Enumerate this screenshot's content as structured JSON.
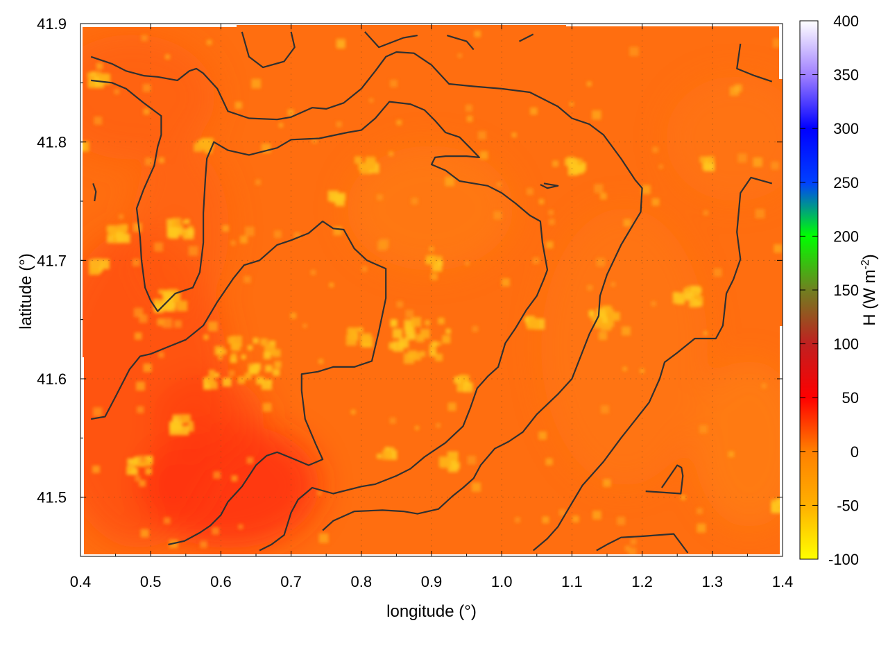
{
  "chart_data": {
    "type": "heatmap",
    "title": "",
    "xlabel": "longitude (°)",
    "ylabel": "latitude (°)",
    "xlim": [
      0.4,
      1.4
    ],
    "ylim": [
      41.45,
      41.9
    ],
    "x_ticks": [
      "0.4",
      "0.5",
      "0.6",
      "0.7",
      "0.8",
      "0.9",
      "1.0",
      "1.1",
      "1.2",
      "1.3",
      "1.4"
    ],
    "y_ticks": [
      "41.5",
      "41.6",
      "41.7",
      "41.8",
      "41.9"
    ],
    "grid": true,
    "colorbar": {
      "label": "H (W m",
      "label_superscript": "-2",
      "label_suffix": ")",
      "range": [
        -100,
        400
      ],
      "ticks": [
        "400",
        "350",
        "300",
        "250",
        "200",
        "150",
        "100",
        "50",
        "0",
        "-50",
        "-100"
      ],
      "stops": [
        {
          "value": -100,
          "color": "#ffff00"
        },
        {
          "value": -50,
          "color": "#ffb000"
        },
        {
          "value": 0,
          "color": "#ff8000"
        },
        {
          "value": 50,
          "color": "#ff0000"
        },
        {
          "value": 100,
          "color": "#c02020"
        },
        {
          "value": 150,
          "color": "#708020"
        },
        {
          "value": 200,
          "color": "#00ff00"
        },
        {
          "value": 250,
          "color": "#0040ff"
        },
        {
          "value": 300,
          "color": "#0000ff"
        },
        {
          "value": 350,
          "color": "#a080ff"
        },
        {
          "value": 400,
          "color": "#ffffff"
        }
      ]
    },
    "field_description_values": {
      "background_min": 5,
      "background_max": 35,
      "hotspot_value": -60
    },
    "contours": [
      [
        [
          0.415,
          41.872
        ],
        [
          0.445,
          41.866
        ],
        [
          0.465,
          41.86
        ],
        [
          0.49,
          41.856
        ],
        [
          0.51,
          41.855
        ],
        [
          0.538,
          41.852
        ],
        [
          0.555,
          41.86
        ],
        [
          0.565,
          41.862
        ],
        [
          0.575,
          41.858
        ],
        [
          0.595,
          41.845
        ],
        [
          0.61,
          41.826
        ],
        [
          0.64,
          41.82
        ],
        [
          0.68,
          41.819
        ],
        [
          0.7,
          41.821
        ],
        [
          0.73,
          41.829
        ],
        [
          0.75,
          41.828
        ],
        [
          0.775,
          41.833
        ],
        [
          0.8,
          41.845
        ],
        [
          0.82,
          41.86
        ],
        [
          0.835,
          41.872
        ],
        [
          0.85,
          41.876
        ],
        [
          0.875,
          41.875
        ],
        [
          0.9,
          41.865
        ],
        [
          0.925,
          41.849
        ],
        [
          0.96,
          41.847
        ],
        [
          1.0,
          41.845
        ],
        [
          1.04,
          41.842
        ],
        [
          1.08,
          41.83
        ],
        [
          1.1,
          41.82
        ],
        [
          1.125,
          41.815
        ],
        [
          1.145,
          41.806
        ],
        [
          1.17,
          41.786
        ],
        [
          1.19,
          41.768
        ],
        [
          1.2,
          41.761
        ],
        [
          1.198,
          41.741
        ],
        [
          1.185,
          41.728
        ],
        [
          1.17,
          41.713
        ],
        [
          1.15,
          41.688
        ],
        [
          1.14,
          41.67
        ],
        [
          1.138,
          41.653
        ],
        [
          1.125,
          41.638
        ],
        [
          1.1,
          41.6
        ],
        [
          1.08,
          41.587
        ],
        [
          1.05,
          41.57
        ],
        [
          1.03,
          41.555
        ],
        [
          1.01,
          41.547
        ],
        [
          0.99,
          41.541
        ],
        [
          0.97,
          41.527
        ],
        [
          0.96,
          41.516
        ],
        [
          0.945,
          41.508
        ],
        [
          0.93,
          41.501
        ],
        [
          0.91,
          41.49
        ],
        [
          0.88,
          41.486
        ],
        [
          0.86,
          41.488
        ],
        [
          0.83,
          41.489
        ],
        [
          0.79,
          41.488
        ],
        [
          0.76,
          41.48
        ],
        [
          0.745,
          41.472
        ]
      ],
      [
        [
          0.415,
          41.852
        ],
        [
          0.445,
          41.85
        ],
        [
          0.465,
          41.845
        ],
        [
          0.49,
          41.833
        ],
        [
          0.515,
          41.822
        ],
        [
          0.515,
          41.806
        ],
        [
          0.51,
          41.796
        ],
        [
          0.505,
          41.78
        ],
        [
          0.49,
          41.76
        ],
        [
          0.48,
          41.744
        ],
        [
          0.485,
          41.719
        ],
        [
          0.487,
          41.7
        ],
        [
          0.492,
          41.677
        ],
        [
          0.5,
          41.666
        ],
        [
          0.51,
          41.657
        ],
        [
          0.535,
          41.672
        ],
        [
          0.56,
          41.677
        ],
        [
          0.57,
          41.69
        ],
        [
          0.575,
          41.715
        ],
        [
          0.575,
          41.74
        ],
        [
          0.578,
          41.77
        ],
        [
          0.58,
          41.786
        ],
        [
          0.59,
          41.8
        ],
        [
          0.61,
          41.793
        ],
        [
          0.64,
          41.789
        ],
        [
          0.68,
          41.795
        ],
        [
          0.7,
          41.802
        ],
        [
          0.74,
          41.803
        ],
        [
          0.78,
          41.808
        ],
        [
          0.8,
          41.81
        ],
        [
          0.82,
          41.82
        ],
        [
          0.84,
          41.834
        ],
        [
          0.87,
          41.832
        ],
        [
          0.89,
          41.827
        ],
        [
          0.905,
          41.818
        ],
        [
          0.92,
          41.808
        ],
        [
          0.94,
          41.804
        ],
        [
          0.955,
          41.795
        ],
        [
          0.968,
          41.787
        ],
        [
          0.95,
          41.788
        ],
        [
          0.92,
          41.788
        ],
        [
          0.905,
          41.787
        ],
        [
          0.9,
          41.781
        ],
        [
          0.92,
          41.776
        ],
        [
          0.94,
          41.767
        ],
        [
          0.98,
          41.763
        ],
        [
          1.0,
          41.757
        ],
        [
          1.02,
          41.748
        ],
        [
          1.04,
          41.738
        ],
        [
          1.055,
          41.733
        ],
        [
          1.058,
          41.715
        ],
        [
          1.065,
          41.692
        ],
        [
          1.06,
          41.684
        ],
        [
          1.05,
          41.67
        ],
        [
          1.035,
          41.658
        ],
        [
          1.02,
          41.643
        ],
        [
          1.005,
          41.63
        ],
        [
          0.995,
          41.61
        ],
        [
          0.98,
          41.602
        ],
        [
          0.965,
          41.592
        ],
        [
          0.955,
          41.575
        ],
        [
          0.945,
          41.56
        ],
        [
          0.92,
          41.546
        ],
        [
          0.89,
          41.534
        ],
        [
          0.87,
          41.524
        ],
        [
          0.85,
          41.518
        ],
        [
          0.82,
          41.511
        ],
        [
          0.8,
          41.509
        ],
        [
          0.76,
          41.503
        ],
        [
          0.73,
          41.508
        ],
        [
          0.71,
          41.498
        ],
        [
          0.7,
          41.487
        ],
        [
          0.69,
          41.468
        ],
        [
          0.672,
          41.46
        ],
        [
          0.655,
          41.455
        ]
      ],
      [
        [
          0.415,
          41.566
        ],
        [
          0.435,
          41.568
        ],
        [
          0.45,
          41.585
        ],
        [
          0.47,
          41.608
        ],
        [
          0.485,
          41.619
        ],
        [
          0.5,
          41.621
        ],
        [
          0.525,
          41.627
        ],
        [
          0.55,
          41.633
        ],
        [
          0.575,
          41.645
        ],
        [
          0.595,
          41.665
        ],
        [
          0.618,
          41.685
        ],
        [
          0.633,
          41.696
        ],
        [
          0.655,
          41.7
        ],
        [
          0.68,
          41.713
        ],
        [
          0.7,
          41.717
        ],
        [
          0.725,
          41.723
        ],
        [
          0.745,
          41.733
        ],
        [
          0.76,
          41.727
        ],
        [
          0.775,
          41.726
        ],
        [
          0.79,
          41.71
        ],
        [
          0.808,
          41.7
        ],
        [
          0.835,
          41.693
        ],
        [
          0.835,
          41.668
        ],
        [
          0.825,
          41.64
        ],
        [
          0.815,
          41.615
        ],
        [
          0.79,
          41.61
        ],
        [
          0.76,
          41.61
        ],
        [
          0.738,
          41.606
        ],
        [
          0.715,
          41.604
        ],
        [
          0.715,
          41.59
        ],
        [
          0.72,
          41.566
        ],
        [
          0.735,
          41.545
        ],
        [
          0.745,
          41.532
        ],
        [
          0.725,
          41.527
        ],
        [
          0.705,
          41.532
        ],
        [
          0.68,
          41.538
        ],
        [
          0.665,
          41.535
        ],
        [
          0.65,
          41.527
        ],
        [
          0.63,
          41.509
        ],
        [
          0.61,
          41.496
        ],
        [
          0.6,
          41.485
        ],
        [
          0.585,
          41.476
        ],
        [
          0.57,
          41.47
        ],
        [
          0.548,
          41.463
        ],
        [
          0.525,
          41.46
        ]
      ],
      [
        [
          1.135,
          41.455
        ],
        [
          1.15,
          41.46
        ],
        [
          1.17,
          41.466
        ],
        [
          1.2,
          41.467
        ],
        [
          1.245,
          41.469
        ],
        [
          1.265,
          41.453
        ]
      ],
      [
        [
          1.205,
          41.505
        ],
        [
          1.255,
          41.503
        ],
        [
          1.258,
          41.518
        ],
        [
          1.256,
          41.525
        ],
        [
          1.25,
          41.527
        ],
        [
          1.228,
          41.508
        ]
      ],
      [
        [
          1.34,
          41.883
        ],
        [
          1.335,
          41.862
        ],
        [
          1.36,
          41.856
        ],
        [
          1.385,
          41.851
        ]
      ],
      [
        [
          1.06,
          41.765
        ],
        [
          1.08,
          41.763
        ],
        [
          1.065,
          41.761
        ],
        [
          1.055,
          41.764
        ]
      ],
      [
        [
          1.385,
          41.765
        ],
        [
          1.355,
          41.77
        ],
        [
          1.34,
          41.757
        ],
        [
          1.335,
          41.724
        ],
        [
          1.34,
          41.701
        ],
        [
          1.33,
          41.684
        ],
        [
          1.32,
          41.672
        ],
        [
          1.315,
          41.645
        ],
        [
          1.305,
          41.634
        ],
        [
          1.275,
          41.634
        ],
        [
          1.25,
          41.622
        ],
        [
          1.232,
          41.614
        ],
        [
          1.225,
          41.6
        ],
        [
          1.21,
          41.58
        ],
        [
          1.19,
          41.565
        ],
        [
          1.17,
          41.55
        ],
        [
          1.145,
          41.53
        ],
        [
          1.115,
          41.51
        ],
        [
          1.095,
          41.49
        ],
        [
          1.08,
          41.475
        ],
        [
          1.065,
          41.465
        ],
        [
          1.045,
          41.455
        ]
      ],
      [
        [
          0.63,
          41.893
        ],
        [
          0.64,
          41.872
        ],
        [
          0.66,
          41.863
        ],
        [
          0.69,
          41.868
        ],
        [
          0.705,
          41.88
        ],
        [
          0.7,
          41.893
        ]
      ],
      [
        [
          0.805,
          41.893
        ],
        [
          0.825,
          41.88
        ],
        [
          0.86,
          41.888
        ],
        [
          0.88,
          41.89
        ]
      ],
      [
        [
          0.922,
          41.89
        ],
        [
          0.95,
          41.885
        ],
        [
          0.96,
          41.878
        ]
      ],
      [
        [
          1.025,
          41.885
        ],
        [
          1.045,
          41.891
        ]
      ],
      [
        [
          0.418,
          41.765
        ],
        [
          0.422,
          41.758
        ],
        [
          0.42,
          41.75
        ]
      ]
    ]
  }
}
